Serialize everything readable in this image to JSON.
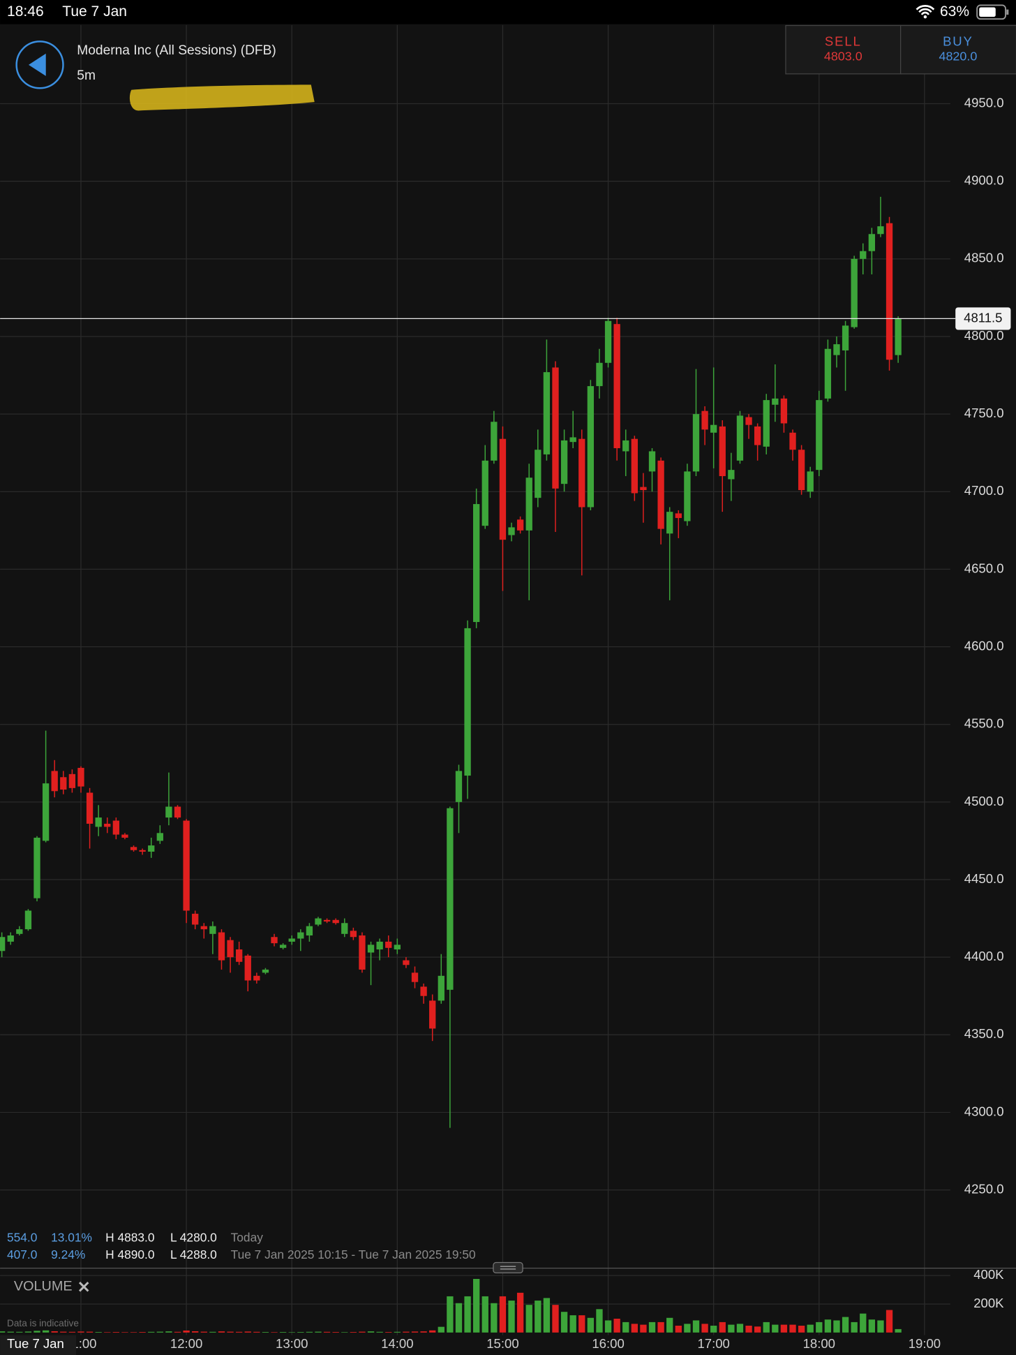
{
  "status_bar": {
    "time": "18:46",
    "date": "Tue 7 Jan",
    "battery": "63%"
  },
  "header": {
    "instrument": "Moderna Inc (All Sessions) (DFB)",
    "interval": "5m"
  },
  "quote": {
    "sell_label": "SELL",
    "sell": "4803.0",
    "buy_label": "BUY",
    "buy": "4820.0"
  },
  "stats": {
    "rows": [
      [
        "554.0",
        "13.01%",
        "H 4883.0",
        "L 4280.0",
        "Today"
      ],
      [
        "407.0",
        "9.24%",
        "H 4890.0",
        "L 4288.0",
        "Tue 7 Jan 2025 10:15 - Tue 7 Jan 2025 19:50"
      ]
    ]
  },
  "footer": {
    "note": "Data is indicative",
    "date_badge": "Tue 7 Jan"
  },
  "chart_data": [
    {
      "type": "candlestick",
      "up_color": "#3da53a",
      "down_color": "#e0201f",
      "grid": true,
      "x": [
        "10:15",
        "10:20",
        "10:25",
        "10:30",
        "10:35",
        "10:40",
        "10:45",
        "10:50",
        "10:55",
        "11:00",
        "11:05",
        "11:10",
        "11:15",
        "11:20",
        "11:25",
        "11:30",
        "11:35",
        "11:40",
        "11:45",
        "11:50",
        "11:55",
        "12:00",
        "12:05",
        "12:10",
        "12:15",
        "12:20",
        "12:25",
        "12:30",
        "12:35",
        "12:40",
        "12:45",
        "12:50",
        "12:55",
        "13:00",
        "13:05",
        "13:10",
        "13:15",
        "13:20",
        "13:25",
        "13:30",
        "13:35",
        "13:40",
        "13:45",
        "13:50",
        "13:55",
        "14:00",
        "14:05",
        "14:10",
        "14:15",
        "14:20",
        "14:25",
        "14:30",
        "14:35",
        "14:40",
        "14:45",
        "14:50",
        "14:55",
        "15:00",
        "15:05",
        "15:10",
        "15:15",
        "15:20",
        "15:25",
        "15:30",
        "15:35",
        "15:40",
        "15:45",
        "15:50",
        "15:55",
        "16:00",
        "16:05",
        "16:10",
        "16:15",
        "16:20",
        "16:25",
        "16:30",
        "16:35",
        "16:40",
        "16:45",
        "16:50",
        "16:55",
        "17:00",
        "17:05",
        "17:10",
        "17:15",
        "17:20",
        "17:25",
        "17:30",
        "17:35",
        "17:40",
        "17:45",
        "17:50",
        "17:55",
        "18:00",
        "18:05",
        "18:10",
        "18:15",
        "18:20",
        "18:25",
        "18:30",
        "18:35",
        "18:40",
        "18:45"
      ],
      "open": [
        4404,
        4410,
        4415,
        4418,
        4438,
        4475,
        4520,
        4516,
        4518,
        4522,
        4506,
        4484,
        4486,
        4488,
        4479,
        4471,
        4469,
        4468,
        4475,
        4490,
        4497,
        4488,
        4428,
        4420,
        4415,
        4416,
        4411,
        4405,
        4401,
        4388,
        4390,
        4413,
        4406,
        4410,
        4412,
        4414,
        4421,
        4424,
        4424,
        4415,
        4417,
        4414,
        4403,
        4405,
        4410,
        4405,
        4398,
        4390,
        4381,
        4372,
        4372,
        4379,
        4500,
        4517,
        4616,
        4678,
        4720,
        4734,
        4672,
        4682,
        4675,
        4696,
        4724,
        4780,
        4705,
        4732,
        4734,
        4690,
        4768,
        4783,
        4808,
        4726,
        4734,
        4703,
        4713,
        4720,
        4673,
        4686,
        4681,
        4713,
        4752,
        4738,
        4742,
        4708,
        4720,
        4748,
        4742,
        4729,
        4756,
        4760,
        4738,
        4727,
        4700,
        4714,
        4760,
        4788,
        4791,
        4806,
        4850,
        4855,
        4866,
        4873,
        4788
      ],
      "high": [
        4416,
        4416,
        4420,
        4431,
        4478,
        4546,
        4527,
        4520,
        4521,
        4523,
        4509,
        4498,
        4490,
        4490,
        4480,
        4472,
        4470,
        4477,
        4485,
        4519,
        4498,
        4489,
        4430,
        4422,
        4423,
        4418,
        4413,
        4410,
        4402,
        4390,
        4393,
        4415,
        4409,
        4414,
        4418,
        4422,
        4426,
        4425,
        4425,
        4425,
        4419,
        4416,
        4410,
        4412,
        4414,
        4412,
        4400,
        4394,
        4383,
        4376,
        4402,
        4497,
        4524,
        4617,
        4702,
        4730,
        4752,
        4742,
        4680,
        4684,
        4718,
        4740,
        4798,
        4784,
        4740,
        4752,
        4740,
        4772,
        4792,
        4812,
        4812,
        4740,
        4736,
        4712,
        4728,
        4722,
        4690,
        4688,
        4718,
        4779,
        4755,
        4780,
        4746,
        4725,
        4752,
        4750,
        4744,
        4763,
        4782,
        4762,
        4740,
        4730,
        4716,
        4765,
        4798,
        4800,
        4810,
        4852,
        4860,
        4870,
        4890,
        4877,
        4813
      ],
      "low": [
        4400,
        4408,
        4414,
        4417,
        4436,
        4474,
        4503,
        4505,
        4506,
        4506,
        4470,
        4478,
        4480,
        4476,
        4476,
        4468,
        4466,
        4464,
        4473,
        4485,
        4489,
        4422,
        4418,
        4412,
        4402,
        4392,
        4390,
        4395,
        4378,
        4383,
        4389,
        4407,
        4405,
        4408,
        4404,
        4410,
        4420,
        4422,
        4421,
        4413,
        4411,
        4390,
        4382,
        4398,
        4400,
        4402,
        4393,
        4380,
        4370,
        4346,
        4370,
        4290,
        4480,
        4502,
        4612,
        4676,
        4718,
        4636,
        4668,
        4673,
        4630,
        4690,
        4720,
        4674,
        4700,
        4728,
        4646,
        4688,
        4760,
        4780,
        4720,
        4710,
        4694,
        4680,
        4700,
        4666,
        4630,
        4670,
        4678,
        4710,
        4730,
        4715,
        4687,
        4694,
        4718,
        4734,
        4720,
        4724,
        4745,
        4738,
        4720,
        4698,
        4696,
        4710,
        4758,
        4780,
        4765,
        4805,
        4840,
        4840,
        4864,
        4778,
        4783
      ],
      "close": [
        4413,
        4414,
        4418,
        4430,
        4477,
        4512,
        4507,
        4508,
        4509,
        4510,
        4486,
        4490,
        4484,
        4479,
        4477,
        4469,
        4468,
        4472,
        4480,
        4497,
        4490,
        4430,
        4421,
        4418,
        4420,
        4398,
        4400,
        4397,
        4385,
        4385,
        4392,
        4409,
        4408,
        4412,
        4416,
        4420,
        4425,
        4423,
        4422,
        4422,
        4413,
        4392,
        4408,
        4410,
        4406,
        4408,
        4395,
        4384,
        4375,
        4354,
        4388,
        4496,
        4520,
        4612,
        4692,
        4720,
        4745,
        4669,
        4677,
        4675,
        4709,
        4727,
        4777,
        4702,
        4733,
        4735,
        4690,
        4768,
        4783,
        4810,
        4728,
        4733,
        4699,
        4701,
        4726,
        4676,
        4687,
        4683,
        4713,
        4750,
        4740,
        4743,
        4710,
        4714,
        4749,
        4743,
        4730,
        4759,
        4760,
        4744,
        4727,
        4701,
        4713,
        4759,
        4792,
        4795,
        4807,
        4850,
        4855,
        4866,
        4871,
        4785,
        4811.5
      ],
      "last_price": 4811.5,
      "xlim": [
        "10:14",
        "19:52"
      ],
      "xticks": [
        "11:00",
        "12:00",
        "13:00",
        "14:00",
        "15:00",
        "16:00",
        "17:00",
        "18:00",
        "19:00"
      ],
      "ylim": [
        4200,
        5000
      ],
      "yticks": [
        {
          "value": 4250,
          "label": "4250.0"
        },
        {
          "value": 4300,
          "label": "4300.0"
        },
        {
          "value": 4350,
          "label": "4350.0"
        },
        {
          "value": 4400,
          "label": "4400.0"
        },
        {
          "value": 4450,
          "label": "4450.0"
        },
        {
          "value": 4500,
          "label": "4500.0"
        },
        {
          "value": 4550,
          "label": "4550.0"
        },
        {
          "value": 4600,
          "label": "4600.0"
        },
        {
          "value": 4650,
          "label": "4650.0"
        },
        {
          "value": 4700,
          "label": "4700.0"
        },
        {
          "value": 4750,
          "label": "4750.0"
        },
        {
          "value": 4800,
          "label": "4800.0"
        },
        {
          "value": 4850,
          "label": "4850.0"
        },
        {
          "value": 4900,
          "label": "4900.0"
        },
        {
          "value": 4950,
          "label": "4950.0"
        }
      ]
    },
    {
      "type": "bar",
      "title": "VOLUME",
      "grid": true,
      "values": [
        8000,
        6000,
        5000,
        7000,
        12000,
        15000,
        9000,
        6000,
        5000,
        7000,
        6000,
        4000,
        3000,
        4000,
        3000,
        3000,
        4000,
        5000,
        6000,
        8000,
        5000,
        14000,
        9000,
        6000,
        5000,
        8000,
        6000,
        5000,
        7000,
        5000,
        4000,
        3000,
        4000,
        3000,
        4000,
        5000,
        6000,
        5000,
        4000,
        3000,
        4000,
        6000,
        8000,
        5000,
        4000,
        5000,
        6000,
        7000,
        8000,
        15000,
        40000,
        254000,
        206000,
        254000,
        376000,
        254000,
        206000,
        254000,
        224000,
        279000,
        194000,
        224000,
        242000,
        194000,
        145000,
        121000,
        121000,
        103000,
        164000,
        85000,
        97000,
        73000,
        61000,
        55000,
        73000,
        73000,
        103000,
        48000,
        61000,
        85000,
        61000,
        48000,
        73000,
        55000,
        61000,
        48000,
        42000,
        73000,
        55000,
        55000,
        55000,
        48000,
        55000,
        73000,
        91000,
        85000,
        109000,
        73000,
        133000,
        91000,
        85000,
        158000,
        24000
      ],
      "ylim": [
        0,
        450000
      ],
      "yticks": [
        {
          "value": 200000,
          "label": "200K"
        },
        {
          "value": 400000,
          "label": "400K"
        }
      ]
    }
  ]
}
